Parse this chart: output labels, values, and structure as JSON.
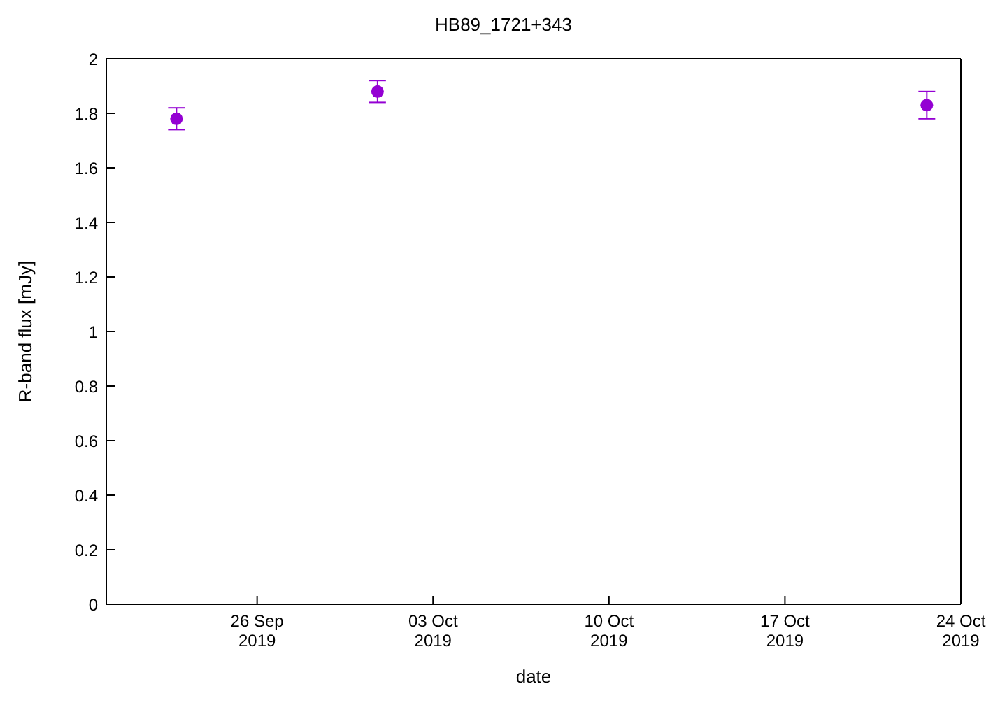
{
  "chart_data": {
    "type": "scatter",
    "title": "HB89_1721+343",
    "xlabel": "date",
    "ylabel": "R-band flux [mJy]",
    "x": [
      "2019-09-22T19:00",
      "2019-09-30T19:00",
      "2019-10-22T15:30"
    ],
    "series": [
      {
        "color": "#9400d3",
        "values": [
          1.78,
          1.88,
          1.83
        ],
        "errors": [
          0.04,
          0.04,
          0.05
        ]
      }
    ],
    "xlim": [
      "2019-09-20",
      "2019-10-24"
    ],
    "xticks": [
      {
        "value": "2019-09-26",
        "label": "26 Sep\n2019"
      },
      {
        "value": "2019-10-03",
        "label": "03 Oct\n2019"
      },
      {
        "value": "2019-10-10",
        "label": "10 Oct\n2019"
      },
      {
        "value": "2019-10-17",
        "label": "17 Oct\n2019"
      },
      {
        "value": "2019-10-24",
        "label": "24 Oct\n2019"
      }
    ],
    "ylim": [
      0,
      2
    ],
    "yticks": [
      0,
      0.2,
      0.4,
      0.6,
      0.8,
      1,
      1.2,
      1.4,
      1.6,
      1.8,
      2
    ],
    "marker": "circle",
    "grid": false,
    "legend": false
  }
}
